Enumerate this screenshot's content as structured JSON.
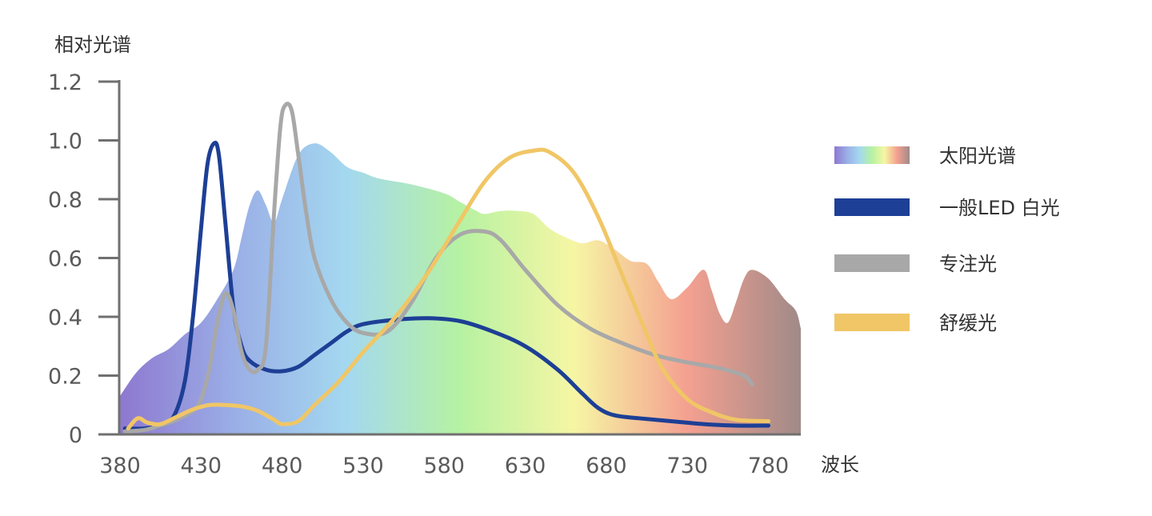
{
  "chart_data": {
    "type": "line",
    "ylabel": "相对光谱",
    "xlabel": "波长",
    "xlim": [
      380,
      800
    ],
    "ylim": [
      0,
      1.2
    ],
    "x_ticks": [
      "380",
      "430",
      "480",
      "530",
      "580",
      "630",
      "680",
      "730",
      "780"
    ],
    "y_ticks": [
      "0",
      "0.2",
      "0.4",
      "0.6",
      "0.8",
      "1.0",
      "1.2"
    ],
    "grid": false,
    "legend_position": "right",
    "series": [
      {
        "name": "太阳光谱",
        "style": "area-gradient",
        "colors": [
          "#8e78d0",
          "#9aaee6",
          "#a4d8f0",
          "#b6f2a2",
          "#f6f6a4",
          "#f4a090",
          "#a08a88"
        ],
        "points": [
          [
            380,
            0.13
          ],
          [
            390,
            0.21
          ],
          [
            400,
            0.26
          ],
          [
            410,
            0.29
          ],
          [
            420,
            0.34
          ],
          [
            430,
            0.38
          ],
          [
            440,
            0.46
          ],
          [
            450,
            0.56
          ],
          [
            455,
            0.67
          ],
          [
            460,
            0.78
          ],
          [
            465,
            0.83
          ],
          [
            470,
            0.78
          ],
          [
            475,
            0.72
          ],
          [
            480,
            0.8
          ],
          [
            490,
            0.95
          ],
          [
            500,
            0.99
          ],
          [
            510,
            0.96
          ],
          [
            520,
            0.91
          ],
          [
            530,
            0.89
          ],
          [
            540,
            0.87
          ],
          [
            560,
            0.85
          ],
          [
            580,
            0.82
          ],
          [
            590,
            0.79
          ],
          [
            600,
            0.76
          ],
          [
            605,
            0.75
          ],
          [
            615,
            0.76
          ],
          [
            625,
            0.76
          ],
          [
            635,
            0.75
          ],
          [
            645,
            0.7
          ],
          [
            655,
            0.67
          ],
          [
            665,
            0.65
          ],
          [
            675,
            0.66
          ],
          [
            685,
            0.63
          ],
          [
            695,
            0.59
          ],
          [
            705,
            0.58
          ],
          [
            712,
            0.52
          ],
          [
            720,
            0.46
          ],
          [
            730,
            0.5
          ],
          [
            740,
            0.56
          ],
          [
            745,
            0.49
          ],
          [
            750,
            0.41
          ],
          [
            755,
            0.38
          ],
          [
            760,
            0.45
          ],
          [
            765,
            0.53
          ],
          [
            770,
            0.56
          ],
          [
            780,
            0.53
          ],
          [
            790,
            0.46
          ],
          [
            797,
            0.42
          ],
          [
            800,
            0.36
          ]
        ]
      },
      {
        "name": "一般LED 白光",
        "color": "#1d3f95",
        "points": [
          [
            383,
            0.02
          ],
          [
            395,
            0.02
          ],
          [
            405,
            0.03
          ],
          [
            413,
            0.06
          ],
          [
            420,
            0.18
          ],
          [
            425,
            0.4
          ],
          [
            430,
            0.7
          ],
          [
            434,
            0.92
          ],
          [
            438,
            0.99
          ],
          [
            441,
            0.95
          ],
          [
            445,
            0.72
          ],
          [
            450,
            0.43
          ],
          [
            455,
            0.3
          ],
          [
            460,
            0.25
          ],
          [
            470,
            0.22
          ],
          [
            480,
            0.215
          ],
          [
            490,
            0.23
          ],
          [
            500,
            0.27
          ],
          [
            510,
            0.31
          ],
          [
            520,
            0.35
          ],
          [
            530,
            0.375
          ],
          [
            550,
            0.39
          ],
          [
            570,
            0.395
          ],
          [
            590,
            0.385
          ],
          [
            610,
            0.35
          ],
          [
            630,
            0.3
          ],
          [
            650,
            0.22
          ],
          [
            665,
            0.14
          ],
          [
            675,
            0.09
          ],
          [
            685,
            0.065
          ],
          [
            700,
            0.055
          ],
          [
            720,
            0.045
          ],
          [
            740,
            0.035
          ],
          [
            760,
            0.03
          ],
          [
            780,
            0.03
          ]
        ]
      },
      {
        "name": "专注光",
        "color": "#a8a8a8",
        "points": [
          [
            383,
            0.01
          ],
          [
            395,
            0.015
          ],
          [
            405,
            0.03
          ],
          [
            415,
            0.05
          ],
          [
            425,
            0.08
          ],
          [
            430,
            0.12
          ],
          [
            435,
            0.22
          ],
          [
            440,
            0.38
          ],
          [
            445,
            0.48
          ],
          [
            450,
            0.42
          ],
          [
            455,
            0.28
          ],
          [
            460,
            0.22
          ],
          [
            465,
            0.22
          ],
          [
            470,
            0.3
          ],
          [
            475,
            0.75
          ],
          [
            479,
            1.05
          ],
          [
            482,
            1.12
          ],
          [
            486,
            1.1
          ],
          [
            490,
            0.95
          ],
          [
            495,
            0.75
          ],
          [
            500,
            0.6
          ],
          [
            510,
            0.46
          ],
          [
            520,
            0.38
          ],
          [
            530,
            0.345
          ],
          [
            545,
            0.35
          ],
          [
            560,
            0.45
          ],
          [
            575,
            0.6
          ],
          [
            590,
            0.68
          ],
          [
            605,
            0.69
          ],
          [
            615,
            0.66
          ],
          [
            630,
            0.56
          ],
          [
            650,
            0.44
          ],
          [
            670,
            0.36
          ],
          [
            690,
            0.31
          ],
          [
            710,
            0.27
          ],
          [
            730,
            0.245
          ],
          [
            750,
            0.225
          ],
          [
            765,
            0.2
          ],
          [
            770,
            0.17
          ]
        ]
      },
      {
        "name": "舒缓光",
        "color": "#f0c666",
        "points": [
          [
            385,
            0.02
          ],
          [
            391,
            0.055
          ],
          [
            397,
            0.04
          ],
          [
            405,
            0.035
          ],
          [
            415,
            0.06
          ],
          [
            425,
            0.085
          ],
          [
            435,
            0.1
          ],
          [
            445,
            0.1
          ],
          [
            455,
            0.095
          ],
          [
            465,
            0.08
          ],
          [
            475,
            0.05
          ],
          [
            480,
            0.035
          ],
          [
            490,
            0.045
          ],
          [
            500,
            0.1
          ],
          [
            515,
            0.18
          ],
          [
            530,
            0.28
          ],
          [
            550,
            0.4
          ],
          [
            570,
            0.55
          ],
          [
            590,
            0.73
          ],
          [
            605,
            0.86
          ],
          [
            620,
            0.94
          ],
          [
            635,
            0.965
          ],
          [
            645,
            0.96
          ],
          [
            660,
            0.89
          ],
          [
            675,
            0.74
          ],
          [
            690,
            0.54
          ],
          [
            705,
            0.34
          ],
          [
            715,
            0.22
          ],
          [
            730,
            0.12
          ],
          [
            745,
            0.075
          ],
          [
            760,
            0.05
          ],
          [
            780,
            0.045
          ]
        ]
      }
    ]
  }
}
